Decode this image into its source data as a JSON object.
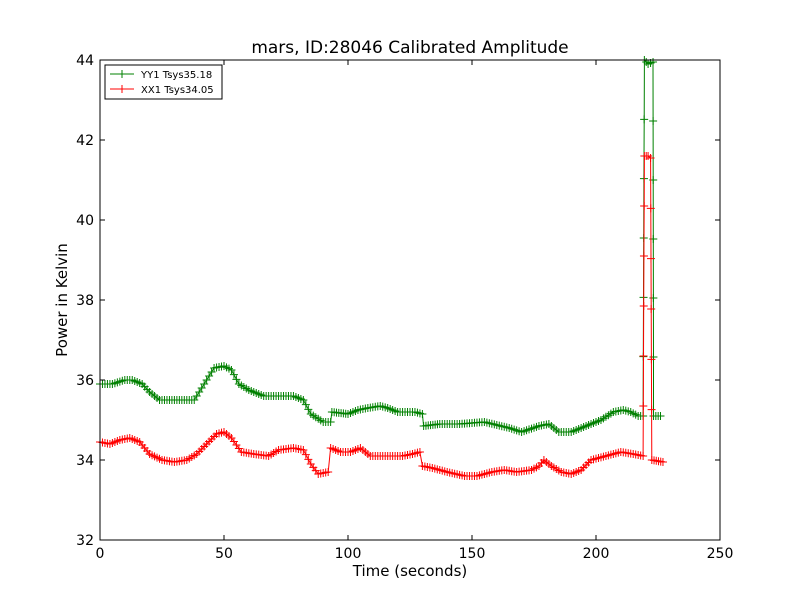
{
  "chart_data": {
    "type": "line",
    "title": "mars, ID:28046 Calibrated Amplitude",
    "xlabel": "Time (seconds)",
    "ylabel": "Power in Kelvin",
    "xlim": [
      0,
      250
    ],
    "ylim": [
      32,
      44
    ],
    "xticks": [
      "0",
      "50",
      "100",
      "150",
      "200",
      "250"
    ],
    "yticks": [
      "32",
      "34",
      "36",
      "38",
      "40",
      "42",
      "44"
    ],
    "grid": false,
    "legend_position": "top-left",
    "marker": "+",
    "series": [
      {
        "name": "YY1 Tsys35.18",
        "color": "#008000",
        "points": [
          [
            0,
            35.9
          ],
          [
            5,
            35.9
          ],
          [
            10,
            36.0
          ],
          [
            13,
            36.0
          ],
          [
            17,
            35.9
          ],
          [
            20,
            35.7
          ],
          [
            24,
            35.5
          ],
          [
            28,
            35.5
          ],
          [
            34,
            35.5
          ],
          [
            38,
            35.5
          ],
          [
            42,
            35.9
          ],
          [
            46,
            36.3
          ],
          [
            50,
            36.35
          ],
          [
            53,
            36.25
          ],
          [
            56,
            35.9
          ],
          [
            60,
            35.75
          ],
          [
            66,
            35.6
          ],
          [
            72,
            35.6
          ],
          [
            78,
            35.6
          ],
          [
            82,
            35.5
          ],
          [
            85,
            35.15
          ],
          [
            90,
            34.95
          ],
          [
            93,
            34.95
          ],
          [
            93.5,
            35.2
          ],
          [
            100,
            35.15
          ],
          [
            104,
            35.25
          ],
          [
            108,
            35.3
          ],
          [
            113,
            35.35
          ],
          [
            116,
            35.3
          ],
          [
            120,
            35.2
          ],
          [
            127,
            35.2
          ],
          [
            130,
            35.15
          ],
          [
            130.5,
            34.85
          ],
          [
            137,
            34.9
          ],
          [
            145,
            34.9
          ],
          [
            155,
            34.95
          ],
          [
            165,
            34.8
          ],
          [
            170,
            34.7
          ],
          [
            177,
            34.85
          ],
          [
            181,
            34.9
          ],
          [
            185,
            34.7
          ],
          [
            190,
            34.7
          ],
          [
            196,
            34.85
          ],
          [
            202,
            35.0
          ],
          [
            207,
            35.2
          ],
          [
            211,
            35.25
          ],
          [
            214,
            35.2
          ],
          [
            217,
            35.1
          ],
          [
            219,
            35.1
          ],
          [
            219.5,
            44.0
          ],
          [
            221,
            43.9
          ],
          [
            223,
            43.95
          ],
          [
            223.2,
            35.1
          ],
          [
            226,
            35.1
          ]
        ]
      },
      {
        "name": "XX1 Tsys34.05",
        "color": "#ff0000",
        "points": [
          [
            0,
            34.45
          ],
          [
            4,
            34.4
          ],
          [
            8,
            34.5
          ],
          [
            12,
            34.55
          ],
          [
            16,
            34.45
          ],
          [
            20,
            34.15
          ],
          [
            25,
            34.0
          ],
          [
            30,
            33.95
          ],
          [
            35,
            34.0
          ],
          [
            39,
            34.15
          ],
          [
            43,
            34.4
          ],
          [
            47,
            34.65
          ],
          [
            50,
            34.7
          ],
          [
            53,
            34.55
          ],
          [
            57,
            34.2
          ],
          [
            62,
            34.15
          ],
          [
            68,
            34.1
          ],
          [
            72,
            34.25
          ],
          [
            78,
            34.3
          ],
          [
            82,
            34.25
          ],
          [
            85,
            33.9
          ],
          [
            88,
            33.65
          ],
          [
            92,
            33.7
          ],
          [
            93,
            34.3
          ],
          [
            97,
            34.2
          ],
          [
            101,
            34.2
          ],
          [
            105,
            34.3
          ],
          [
            109,
            34.1
          ],
          [
            113,
            34.1
          ],
          [
            118,
            34.1
          ],
          [
            122,
            34.1
          ],
          [
            126,
            34.15
          ],
          [
            129,
            34.2
          ],
          [
            130,
            33.85
          ],
          [
            134,
            33.8
          ],
          [
            140,
            33.7
          ],
          [
            147,
            33.6
          ],
          [
            152,
            33.6
          ],
          [
            158,
            33.7
          ],
          [
            163,
            33.75
          ],
          [
            168,
            33.7
          ],
          [
            174,
            33.75
          ],
          [
            177,
            33.85
          ],
          [
            179,
            34.0
          ],
          [
            182,
            33.85
          ],
          [
            186,
            33.7
          ],
          [
            190,
            33.65
          ],
          [
            194,
            33.75
          ],
          [
            198,
            34.0
          ],
          [
            204,
            34.1
          ],
          [
            210,
            34.2
          ],
          [
            215,
            34.15
          ],
          [
            219,
            34.1
          ],
          [
            219.5,
            41.6
          ],
          [
            221,
            41.6
          ],
          [
            222,
            41.55
          ],
          [
            222.5,
            34.0
          ],
          [
            227,
            33.95
          ]
        ]
      }
    ]
  }
}
